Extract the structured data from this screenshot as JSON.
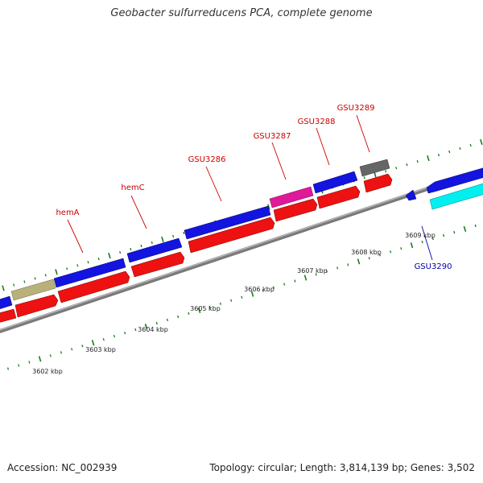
{
  "title": "Geobacter sulfurreducens PCA, complete genome",
  "footer": {
    "accession": "Accession: NC_002939",
    "summary": "Topology: circular; Length: 3,814,139 bp; Genes: 3,502"
  },
  "colors": {
    "forward_cds": "#1010dd",
    "reverse_cds": "#ee1111",
    "backbone": "#8a8a8a",
    "tick": "#1a7a1a",
    "label_red": "#cc0000",
    "label_blue": "#0000aa",
    "khaki": "#b8b27a",
    "magenta": "#e0189a",
    "gray": "#666666",
    "cyan": "#00f0f0"
  },
  "scale": {
    "labels": [
      "3602 kbp",
      "3603 kbp",
      "3604 kbp",
      "3605 kbp",
      "3606 kbp",
      "3607 kbp",
      "3608 kbp",
      "3609 kbp"
    ]
  },
  "gene_labels": [
    {
      "text": "hemA",
      "color": "label_red"
    },
    {
      "text": "hemC",
      "color": "label_red"
    },
    {
      "text": "GSU3286",
      "color": "label_red"
    },
    {
      "text": "GSU3287",
      "color": "label_red"
    },
    {
      "text": "GSU3288",
      "color": "label_red"
    },
    {
      "text": "GSU3289",
      "color": "label_red"
    },
    {
      "text": "GSU3290",
      "color": "label_blue"
    }
  ]
}
